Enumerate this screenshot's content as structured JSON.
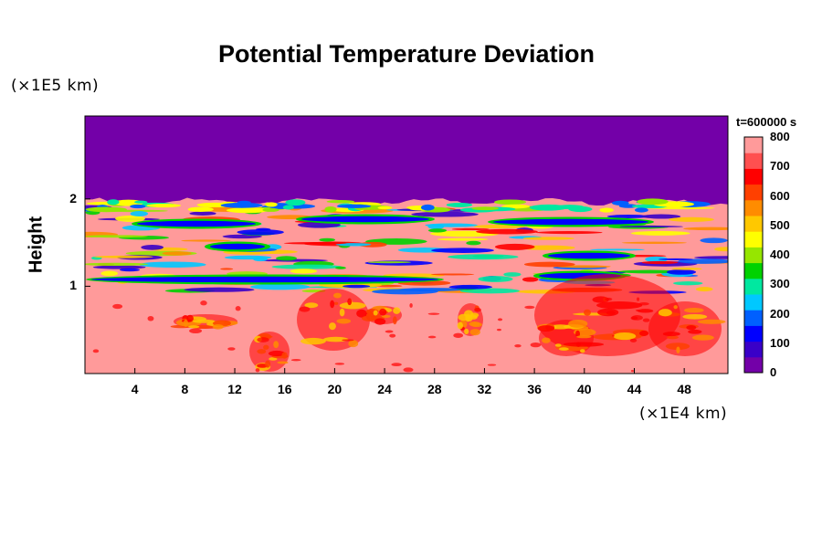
{
  "chart_data": {
    "type": "heatmap",
    "title": "Potential Temperature Deviation",
    "ylabel": "Height",
    "y_unit": "(×1E5 km)",
    "x_unit": "(×1E4 km)",
    "xlim": [
      0,
      51.5
    ],
    "ylim": [
      0,
      2.95
    ],
    "x_ticks": [
      "4",
      "8",
      "12",
      "16",
      "20",
      "24",
      "28",
      "32",
      "36",
      "40",
      "44",
      "48"
    ],
    "y_ticks": [
      "1",
      "2"
    ],
    "colorbar": {
      "title": "t=600000 s",
      "min": 0,
      "max": 800,
      "tick_labels": [
        "800",
        "700",
        "600",
        "500",
        "400",
        "300",
        "200",
        "100",
        "0"
      ],
      "palette": [
        "#7300a8",
        "#3a00c8",
        "#0000ff",
        "#0060ff",
        "#00c8ff",
        "#00e8a0",
        "#00d200",
        "#96e600",
        "#ffff00",
        "#ffc800",
        "#ff8c00",
        "#ff4000",
        "#ff0000",
        "#ff5050",
        "#ff9a9a"
      ]
    },
    "description_regions": {
      "upper_uniform_value": 0,
      "interface_height_y": 1.97,
      "mixed_layer": [
        0.95,
        1.97
      ],
      "lower_region_value": 800
    }
  }
}
